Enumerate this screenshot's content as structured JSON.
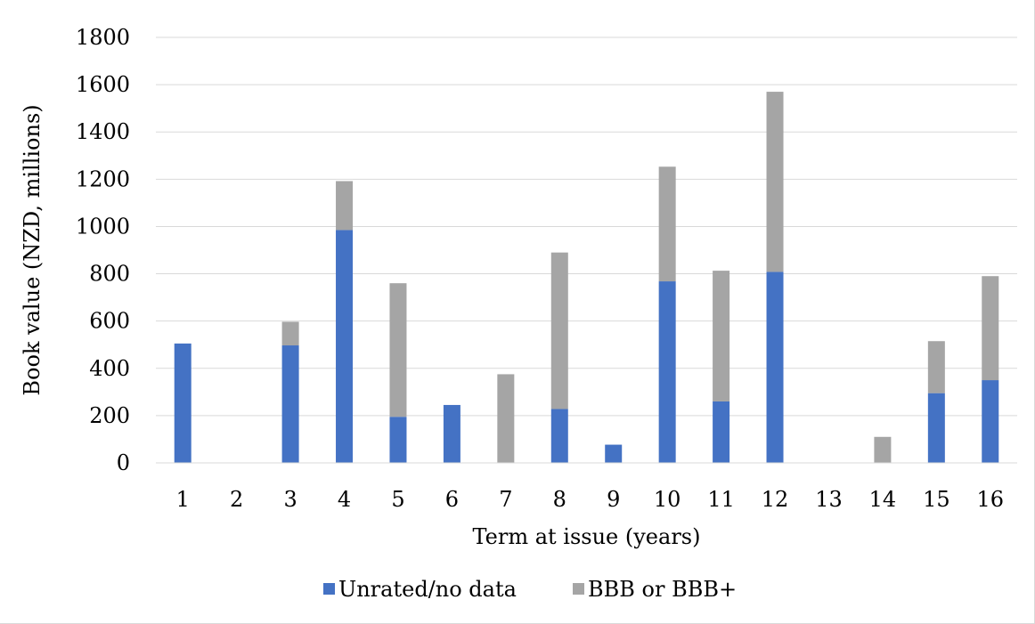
{
  "chart_data": {
    "type": "bar",
    "stacked": true,
    "categories": [
      "1",
      "2",
      "3",
      "4",
      "5",
      "6",
      "7",
      "8",
      "9",
      "10",
      "11",
      "12",
      "13",
      "14",
      "15",
      "16"
    ],
    "series": [
      {
        "name": "Unrated/no data",
        "color": "#4472c4",
        "values": [
          505,
          0,
          497,
          985,
          195,
          245,
          0,
          228,
          77,
          768,
          260,
          808,
          0,
          0,
          295,
          350
        ]
      },
      {
        "name": "BBB or BBB+",
        "color": "#a5a5a5",
        "values": [
          0,
          0,
          100,
          207,
          565,
          0,
          375,
          662,
          0,
          485,
          553,
          762,
          0,
          110,
          220,
          440
        ]
      }
    ],
    "title": "",
    "xlabel": "Term at issue (years)",
    "ylabel": "Book value (NZD, millions)",
    "ylim": [
      0,
      1800
    ],
    "yticks": [
      0,
      200,
      400,
      600,
      800,
      1000,
      1200,
      1400,
      1600,
      1800
    ],
    "gridlines": true,
    "legend_position": "bottom"
  }
}
